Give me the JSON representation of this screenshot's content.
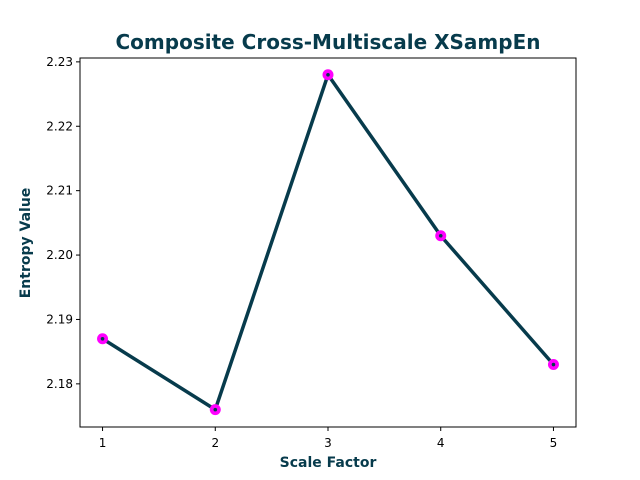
{
  "chart_data": {
    "type": "line",
    "title": "Composite Cross-Multiscale XSampEn",
    "xlabel": "Scale Factor",
    "ylabel": "Entropy Value",
    "x": [
      1,
      2,
      3,
      4,
      5
    ],
    "series": [
      {
        "values": [
          2.187,
          2.176,
          2.228,
          2.203,
          2.183
        ]
      }
    ],
    "xticks": [
      "1",
      "2",
      "3",
      "4",
      "5"
    ],
    "yticks": [
      "2.18",
      "2.19",
      "2.20",
      "2.21",
      "2.22",
      "2.23"
    ],
    "xlim": [
      0.8,
      5.2
    ],
    "ylim": [
      2.1733,
      2.2306
    ],
    "grid": false,
    "legend": "none",
    "colors": {
      "line": "#073b4c",
      "marker": "#ff00ff",
      "text": "#073b4c",
      "axes": "#000000"
    }
  }
}
